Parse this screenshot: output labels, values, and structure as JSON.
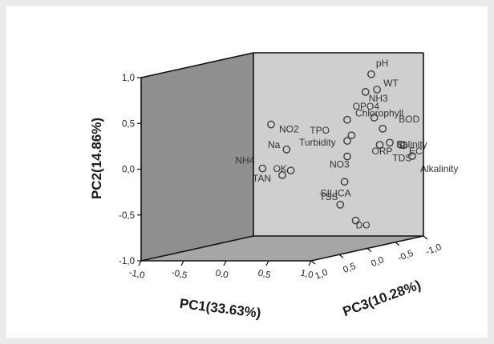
{
  "chart_data": {
    "type": "scatter",
    "subtype": "3d-loading-plot",
    "title": "",
    "axes": {
      "x": {
        "label": "PC1(33.63%)",
        "ticks": [
          "-1,0",
          "-0,5",
          "0,0",
          "0,5",
          "1,0"
        ],
        "range": [
          -1,
          1
        ]
      },
      "y": {
        "label": "PC2(14.86%)",
        "ticks": [
          "-1,0",
          "-0,5",
          "0,0",
          "0,5",
          "1,0"
        ],
        "range": [
          -1,
          1
        ]
      },
      "z": {
        "label": "PC3(10.28%)",
        "ticks": [
          "1,0",
          "0,5",
          "0,0",
          "-0,5",
          "-1,0"
        ],
        "range": [
          -1,
          1
        ]
      }
    },
    "grid": false,
    "legend": "none",
    "points": [
      {
        "label": "pH",
        "x": 0.65,
        "y": 0.82,
        "z": 0.2
      },
      {
        "label": "WT",
        "x": 0.85,
        "y": 0.68,
        "z": 0.3
      },
      {
        "label": "NH3",
        "x": 0.45,
        "y": 0.6,
        "z": 0.1
      },
      {
        "label": "Chlorophyll",
        "x": 0.5,
        "y": 0.35,
        "z": 0.3
      },
      {
        "label": "OPO4",
        "x": 0.95,
        "y": 0.4,
        "z": 0.4
      },
      {
        "label": "BOD",
        "x": 1.05,
        "y": 0.28,
        "z": 0.4
      },
      {
        "label": "NO2",
        "x": 0.0,
        "y": 0.38,
        "z": 0.6
      },
      {
        "label": "TPO",
        "x": 0.55,
        "y": 0.18,
        "z": 0.3
      },
      {
        "label": "Salinity",
        "x": 1.0,
        "y": 0.1,
        "z": 0.3
      },
      {
        "label": "Na",
        "x": 0.05,
        "y": 0.08,
        "z": 0.5
      },
      {
        "label": "Turbidity",
        "x": 0.5,
        "y": 0.12,
        "z": 0.3
      },
      {
        "label": "ORP",
        "x": 0.75,
        "y": 0.05,
        "z": 0.2
      },
      {
        "label": "EC",
        "x": 1.0,
        "y": 0.05,
        "z": 0.2
      },
      {
        "label": "TDS",
        "x": 0.9,
        "y": 0.02,
        "z": 0.1
      },
      {
        "label": "NH4",
        "x": -0.1,
        "y": -0.1,
        "z": 0.6
      },
      {
        "label": "NO3",
        "x": 0.5,
        "y": -0.05,
        "z": 0.3
      },
      {
        "label": "Alkalinity",
        "x": 1.0,
        "y": -0.1,
        "z": 0.1
      },
      {
        "label": "OK",
        "x": 0.1,
        "y": -0.15,
        "z": 0.5
      },
      {
        "label": "TAN",
        "x": 0.0,
        "y": -0.2,
        "z": 0.5
      },
      {
        "label": "SILICA",
        "x": 0.6,
        "y": -0.3,
        "z": 0.4
      },
      {
        "label": "TSS",
        "x": 0.55,
        "y": -0.55,
        "z": 0.4
      },
      {
        "label": "DO",
        "x": 0.6,
        "y": -0.75,
        "z": 0.3
      }
    ],
    "colors": {
      "left_wall": "#8f8f8f",
      "back_wall": "#cfcfcf",
      "floor": "#a6a6a6",
      "edge": "#111111",
      "marker": "#333333"
    }
  }
}
